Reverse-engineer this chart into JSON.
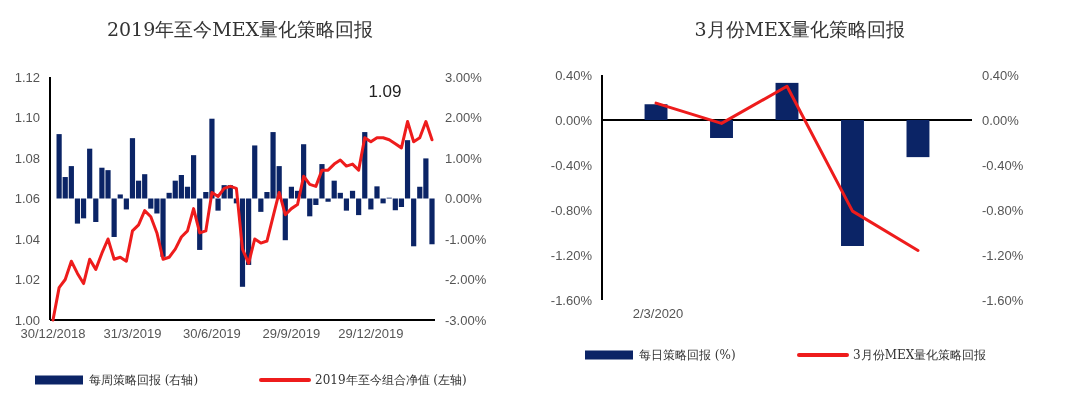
{
  "chart_data": [
    {
      "type": "bar",
      "title": "2019年至今MEX量化策略回报",
      "categories": [
        "30/12/2018",
        null,
        null,
        null,
        null,
        null,
        null,
        null,
        null,
        null,
        null,
        null,
        null,
        "31/3/2019",
        null,
        null,
        null,
        null,
        null,
        null,
        null,
        null,
        null,
        null,
        null,
        null,
        "30/6/2019",
        null,
        null,
        null,
        null,
        null,
        null,
        null,
        null,
        null,
        null,
        null,
        null,
        "29/9/2019",
        null,
        null,
        null,
        null,
        null,
        null,
        null,
        null,
        null,
        null,
        null,
        null,
        "29/12/2019",
        null,
        null,
        null,
        null,
        null,
        null,
        null,
        null,
        null,
        null
      ],
      "series": [
        {
          "name": "每周策略回报 (右轴)",
          "axis": "y2",
          "color": "#0b2466",
          "values": [
            null,
            1.59,
            0.53,
            0.8,
            -0.62,
            -0.49,
            1.23,
            -0.58,
            0.76,
            0.7,
            -0.95,
            0.1,
            -0.27,
            1.49,
            0.44,
            0.6,
            -0.25,
            -0.37,
            -1.44,
            0.14,
            0.44,
            0.58,
            0.29,
            1.07,
            -1.27,
            0.16,
            1.97,
            -0.3,
            0.33,
            0.33,
            -0.12,
            -2.18,
            -1.64,
            1.31,
            -0.33,
            0.16,
            1.64,
            0.8,
            -1.03,
            0.29,
            0.19,
            1.34,
            -0.44,
            -0.16,
            0.85,
            -0.08,
            0.44,
            0.14,
            -0.3,
            0.19,
            -0.41,
            1.64,
            -0.27,
            0.3,
            -0.12,
            0.02,
            -0.29,
            -0.21,
            1.44,
            -1.18,
            0.29,
            0.99,
            -1.13
          ]
        },
        {
          "name": "2019年至今组合净值 (左轴)",
          "type": "line",
          "color": "#ee1c1c",
          "values": [
            1.0,
            1.016,
            1.02,
            1.029,
            1.023,
            1.018,
            1.03,
            1.025,
            1.033,
            1.04,
            1.03,
            1.031,
            1.029,
            1.044,
            1.047,
            1.054,
            1.051,
            1.043,
            1.03,
            1.031,
            1.035,
            1.041,
            1.044,
            1.055,
            1.043,
            1.044,
            1.063,
            1.061,
            1.065,
            1.066,
            1.065,
            1.035,
            1.028,
            1.04,
            1.038,
            1.039,
            1.051,
            1.063,
            1.052,
            1.055,
            1.057,
            1.071,
            1.067,
            1.066,
            1.074,
            1.074,
            1.077,
            1.079,
            1.076,
            1.077,
            1.074,
            1.09,
            1.088,
            1.09,
            1.09,
            1.089,
            1.087,
            1.085,
            1.098,
            1.088,
            1.09,
            1.098,
            1.089
          ]
        }
      ],
      "ylim": [
        1.0,
        1.12
      ],
      "yticks": [
        {
          "value": 1.0,
          "label": "1.00"
        },
        {
          "value": 1.02,
          "label": "1.02"
        },
        {
          "value": 1.04,
          "label": "1.04"
        },
        {
          "value": 1.06,
          "label": "1.06"
        },
        {
          "value": 1.08,
          "label": "1.08"
        },
        {
          "value": 1.1,
          "label": "1.10"
        },
        {
          "value": 1.12,
          "label": "1.12"
        }
      ],
      "y2lim": [
        -3,
        3
      ],
      "y2ticks": [
        {
          "value": -3,
          "label": "-3.00%"
        },
        {
          "value": -2,
          "label": "-2.00%"
        },
        {
          "value": -1,
          "label": "-1.00%"
        },
        {
          "value": 0,
          "label": "0.00%"
        },
        {
          "value": 1,
          "label": "1.00%"
        },
        {
          "value": 2,
          "label": "2.00%"
        },
        {
          "value": 3,
          "label": "3.00%"
        }
      ],
      "annotations": [
        "1.09"
      ],
      "legend": "bottom",
      "grid": false
    },
    {
      "type": "bar",
      "title": "3月份MEX量化策略回报",
      "categories": [
        "2/3/2020",
        null,
        null,
        null,
        null
      ],
      "series": [
        {
          "name": "每日策略回报 (%)",
          "color": "#0b2466",
          "values": [
            0.14,
            -0.16,
            0.33,
            -1.12,
            -0.33
          ]
        },
        {
          "name": "3月份MEX量化策略回报",
          "type": "line",
          "axis": "y2",
          "color": "#ee1c1c",
          "values": [
            0.15,
            -0.03,
            0.3,
            -0.81,
            -1.16
          ]
        }
      ],
      "ref_lines": [
        {
          "axis": "y",
          "value": 0
        }
      ],
      "ylim": [
        -1.6,
        0.4
      ],
      "yticks": [
        {
          "value": -1.6,
          "label": "-1.60%"
        },
        {
          "value": -1.2,
          "label": "-1.20%"
        },
        {
          "value": -0.8,
          "label": "-0.80%"
        },
        {
          "value": -0.4,
          "label": "-0.40%"
        },
        {
          "value": 0,
          "label": "0.00%"
        },
        {
          "value": 0.4,
          "label": "0.40%"
        }
      ],
      "y2lim": [
        -1.6,
        0.4
      ],
      "y2ticks": [
        {
          "value": -1.6,
          "label": "-1.60%"
        },
        {
          "value": -1.2,
          "label": "-1.20%"
        },
        {
          "value": -0.8,
          "label": "-0.80%"
        },
        {
          "value": -0.4,
          "label": "-0.40%"
        },
        {
          "value": 0,
          "label": "0.00%"
        },
        {
          "value": 0.4,
          "label": "0.40%"
        }
      ],
      "legend": "bottom",
      "grid": false
    }
  ]
}
